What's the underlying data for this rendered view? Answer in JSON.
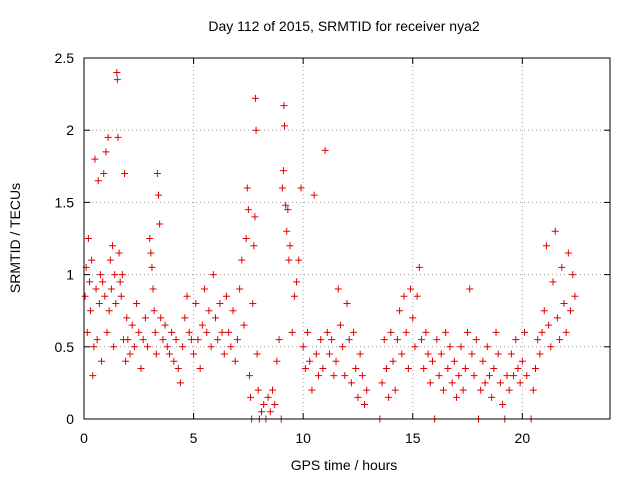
{
  "chart_data": {
    "type": "scatter",
    "title": "Day 112 of 2015, SRMTID for receiver nya2",
    "xlabel": "GPS time / hours",
    "ylabel": "SRMTID / TECUs",
    "xlim": [
      0,
      24
    ],
    "ylim": [
      0,
      2.5
    ],
    "grid": true,
    "marker": "+",
    "color": "#e00000",
    "xticks": [
      0,
      5,
      10,
      15,
      20
    ],
    "xtick_labels": [
      "0",
      "5",
      "10",
      "15",
      "20"
    ],
    "yticks": [
      0,
      0.5,
      1,
      1.5,
      2,
      2.5
    ],
    "ytick_labels": [
      "0",
      "0.5",
      "1",
      "1.5",
      "2",
      "2.5"
    ],
    "series": [
      {
        "name": "nya2",
        "points": [
          [
            0.05,
            0.85
          ],
          [
            0.1,
            1.05
          ],
          [
            0.15,
            0.6
          ],
          [
            0.2,
            1.25
          ],
          [
            0.25,
            0.95
          ],
          [
            0.3,
            0.75
          ],
          [
            0.35,
            1.1
          ],
          [
            0.4,
            0.3
          ],
          [
            0.45,
            0.5
          ],
          [
            0.5,
            1.8
          ],
          [
            0.55,
            0.9
          ],
          [
            0.6,
            0.55
          ],
          [
            0.65,
            1.65
          ],
          [
            0.7,
            0.8
          ],
          [
            0.75,
            1.0
          ],
          [
            0.8,
            0.4
          ],
          [
            0.85,
            0.95
          ],
          [
            0.9,
            1.7
          ],
          [
            0.95,
            0.85
          ],
          [
            1.0,
            1.85
          ],
          [
            1.05,
            0.6
          ],
          [
            1.1,
            1.95
          ],
          [
            1.15,
            0.75
          ],
          [
            1.2,
            1.1
          ],
          [
            1.25,
            0.9
          ],
          [
            1.3,
            1.2
          ],
          [
            1.35,
            0.5
          ],
          [
            1.4,
            1.0
          ],
          [
            1.45,
            0.8
          ],
          [
            1.5,
            2.4
          ],
          [
            1.52,
            2.35
          ],
          [
            1.55,
            1.95
          ],
          [
            1.6,
            1.15
          ],
          [
            1.65,
            0.95
          ],
          [
            1.7,
            0.85
          ],
          [
            1.75,
            1.0
          ],
          [
            1.8,
            0.55
          ],
          [
            1.85,
            1.7
          ],
          [
            1.9,
            0.4
          ],
          [
            1.95,
            0.7
          ],
          [
            2.0,
            0.55
          ],
          [
            2.1,
            0.45
          ],
          [
            2.2,
            0.65
          ],
          [
            2.3,
            0.5
          ],
          [
            2.4,
            0.8
          ],
          [
            2.5,
            0.6
          ],
          [
            2.6,
            0.35
          ],
          [
            2.7,
            0.55
          ],
          [
            2.8,
            0.7
          ],
          [
            2.9,
            0.5
          ],
          [
            3.0,
            1.25
          ],
          [
            3.05,
            1.15
          ],
          [
            3.1,
            1.05
          ],
          [
            3.15,
            0.9
          ],
          [
            3.2,
            0.75
          ],
          [
            3.25,
            0.6
          ],
          [
            3.3,
            0.45
          ],
          [
            3.35,
            1.7
          ],
          [
            3.4,
            1.55
          ],
          [
            3.45,
            1.35
          ],
          [
            3.5,
            0.7
          ],
          [
            3.6,
            0.55
          ],
          [
            3.7,
            0.65
          ],
          [
            3.8,
            0.5
          ],
          [
            3.9,
            0.45
          ],
          [
            4.0,
            0.6
          ],
          [
            4.1,
            0.4
          ],
          [
            4.2,
            0.55
          ],
          [
            4.3,
            0.35
          ],
          [
            4.4,
            0.25
          ],
          [
            4.5,
            0.5
          ],
          [
            4.6,
            0.7
          ],
          [
            4.7,
            0.85
          ],
          [
            4.8,
            0.6
          ],
          [
            4.9,
            0.55
          ],
          [
            5.0,
            0.45
          ],
          [
            5.1,
            0.8
          ],
          [
            5.2,
            0.55
          ],
          [
            5.3,
            0.35
          ],
          [
            5.4,
            0.65
          ],
          [
            5.5,
            0.9
          ],
          [
            5.6,
            0.6
          ],
          [
            5.7,
            0.75
          ],
          [
            5.8,
            0.5
          ],
          [
            5.9,
            1.0
          ],
          [
            6.0,
            0.7
          ],
          [
            6.1,
            0.55
          ],
          [
            6.2,
            0.8
          ],
          [
            6.3,
            0.6
          ],
          [
            6.4,
            0.45
          ],
          [
            6.5,
            0.85
          ],
          [
            6.6,
            0.6
          ],
          [
            6.7,
            0.5
          ],
          [
            6.8,
            0.75
          ],
          [
            6.9,
            0.4
          ],
          [
            7.0,
            0.55
          ],
          [
            7.1,
            0.9
          ],
          [
            7.2,
            1.1
          ],
          [
            7.3,
            0.65
          ],
          [
            7.4,
            1.25
          ],
          [
            7.45,
            1.6
          ],
          [
            7.5,
            1.45
          ],
          [
            7.55,
            0.3
          ],
          [
            7.6,
            0.15
          ],
          [
            7.65,
            0.0
          ],
          [
            7.7,
            0.8
          ],
          [
            7.75,
            1.2
          ],
          [
            7.8,
            1.4
          ],
          [
            7.82,
            2.22
          ],
          [
            7.85,
            2.0
          ],
          [
            7.9,
            0.45
          ],
          [
            7.95,
            0.2
          ],
          [
            8.0,
            0.0
          ],
          [
            8.1,
            0.05
          ],
          [
            8.2,
            0.1
          ],
          [
            8.3,
            0.0
          ],
          [
            8.4,
            0.15
          ],
          [
            8.5,
            0.05
          ],
          [
            8.6,
            0.2
          ],
          [
            8.7,
            0.1
          ],
          [
            8.8,
            0.4
          ],
          [
            8.9,
            0.55
          ],
          [
            9.0,
            0.0
          ],
          [
            9.05,
            1.6
          ],
          [
            9.1,
            1.72
          ],
          [
            9.12,
            2.17
          ],
          [
            9.15,
            2.03
          ],
          [
            9.2,
            1.48
          ],
          [
            9.25,
            1.3
          ],
          [
            9.3,
            1.45
          ],
          [
            9.35,
            1.1
          ],
          [
            9.4,
            1.2
          ],
          [
            9.5,
            0.6
          ],
          [
            9.6,
            0.85
          ],
          [
            9.7,
            0.95
          ],
          [
            9.8,
            1.1
          ],
          [
            9.9,
            1.6
          ],
          [
            10.0,
            0.5
          ],
          [
            10.1,
            0.35
          ],
          [
            10.2,
            0.6
          ],
          [
            10.3,
            0.4
          ],
          [
            10.4,
            0.2
          ],
          [
            10.5,
            1.55
          ],
          [
            10.6,
            0.45
          ],
          [
            10.7,
            0.3
          ],
          [
            10.8,
            0.55
          ],
          [
            10.9,
            0.35
          ],
          [
            11.0,
            1.86
          ],
          [
            11.1,
            0.6
          ],
          [
            11.2,
            0.45
          ],
          [
            11.3,
            0.55
          ],
          [
            11.4,
            0.3
          ],
          [
            11.5,
            0.4
          ],
          [
            11.6,
            0.9
          ],
          [
            11.7,
            0.65
          ],
          [
            11.8,
            0.5
          ],
          [
            11.9,
            0.3
          ],
          [
            12.0,
            0.8
          ],
          [
            12.1,
            0.55
          ],
          [
            12.2,
            0.25
          ],
          [
            12.3,
            0.6
          ],
          [
            12.4,
            0.35
          ],
          [
            12.5,
            0.15
          ],
          [
            12.6,
            0.45
          ],
          [
            12.7,
            0.3
          ],
          [
            12.8,
            0.1
          ],
          [
            12.9,
            0.2
          ],
          [
            13.5,
            0.0
          ],
          [
            13.6,
            0.25
          ],
          [
            13.7,
            0.55
          ],
          [
            13.8,
            0.35
          ],
          [
            13.9,
            0.15
          ],
          [
            14.0,
            0.6
          ],
          [
            14.1,
            0.4
          ],
          [
            14.2,
            0.2
          ],
          [
            14.3,
            0.55
          ],
          [
            14.4,
            0.75
          ],
          [
            14.5,
            0.45
          ],
          [
            14.6,
            0.85
          ],
          [
            14.7,
            0.6
          ],
          [
            14.8,
            0.35
          ],
          [
            14.9,
            0.9
          ],
          [
            15.0,
            0.7
          ],
          [
            15.1,
            0.5
          ],
          [
            15.2,
            0.85
          ],
          [
            15.3,
            1.05
          ],
          [
            15.4,
            0.55
          ],
          [
            15.5,
            0.35
          ],
          [
            15.6,
            0.6
          ],
          [
            15.7,
            0.45
          ],
          [
            15.8,
            0.25
          ],
          [
            15.9,
            0.4
          ],
          [
            16.0,
            0.0
          ],
          [
            16.1,
            0.55
          ],
          [
            16.2,
            0.3
          ],
          [
            16.3,
            0.45
          ],
          [
            16.4,
            0.2
          ],
          [
            16.5,
            0.6
          ],
          [
            16.6,
            0.35
          ],
          [
            16.7,
            0.5
          ],
          [
            16.8,
            0.25
          ],
          [
            16.9,
            0.4
          ],
          [
            17.0,
            0.15
          ],
          [
            17.1,
            0.3
          ],
          [
            17.2,
            0.5
          ],
          [
            17.3,
            0.2
          ],
          [
            17.4,
            0.35
          ],
          [
            17.5,
            0.6
          ],
          [
            17.6,
            0.9
          ],
          [
            17.7,
            0.45
          ],
          [
            17.8,
            0.3
          ],
          [
            17.9,
            0.55
          ],
          [
            18.0,
            0.0
          ],
          [
            18.1,
            0.2
          ],
          [
            18.2,
            0.4
          ],
          [
            18.3,
            0.25
          ],
          [
            18.4,
            0.5
          ],
          [
            18.5,
            0.3
          ],
          [
            18.6,
            0.15
          ],
          [
            18.7,
            0.35
          ],
          [
            18.8,
            0.6
          ],
          [
            18.9,
            0.45
          ],
          [
            19.0,
            0.25
          ],
          [
            19.1,
            0.1
          ],
          [
            19.2,
            0.0
          ],
          [
            19.3,
            0.3
          ],
          [
            19.4,
            0.2
          ],
          [
            19.5,
            0.45
          ],
          [
            19.6,
            0.3
          ],
          [
            19.7,
            0.55
          ],
          [
            19.8,
            0.35
          ],
          [
            19.9,
            0.25
          ],
          [
            20.0,
            0.4
          ],
          [
            20.1,
            0.6
          ],
          [
            20.2,
            0.3
          ],
          [
            20.4,
            0.0
          ],
          [
            20.5,
            0.2
          ],
          [
            20.6,
            0.35
          ],
          [
            20.7,
            0.55
          ],
          [
            20.8,
            0.45
          ],
          [
            20.9,
            0.6
          ],
          [
            21.0,
            0.75
          ],
          [
            21.1,
            1.2
          ],
          [
            21.2,
            0.65
          ],
          [
            21.3,
            0.5
          ],
          [
            21.4,
            0.95
          ],
          [
            21.5,
            1.3
          ],
          [
            21.6,
            0.7
          ],
          [
            21.7,
            0.55
          ],
          [
            21.8,
            1.05
          ],
          [
            21.9,
            0.8
          ],
          [
            22.0,
            0.6
          ],
          [
            22.1,
            1.15
          ],
          [
            22.2,
            0.75
          ],
          [
            22.3,
            1.0
          ],
          [
            22.4,
            0.85
          ]
        ]
      }
    ]
  }
}
